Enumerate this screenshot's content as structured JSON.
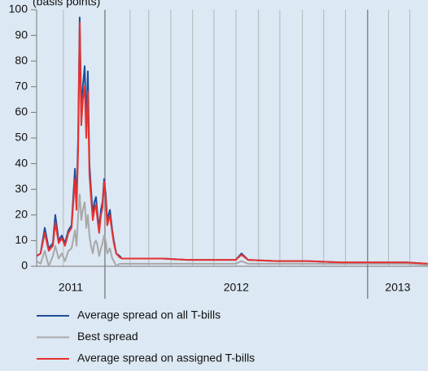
{
  "chart_data": {
    "type": "line",
    "subtitle": "(basis points)",
    "x": [
      2011.74,
      2011.755,
      2011.771,
      2011.786,
      2011.802,
      2011.811,
      2011.824,
      2011.836,
      2011.848,
      2011.861,
      2011.873,
      2011.886,
      2011.892,
      2011.898,
      2011.904,
      2011.91,
      2011.916,
      2011.923,
      2011.929,
      2011.935,
      2011.941,
      2011.947,
      2011.954,
      2011.96,
      2011.966,
      2011.972,
      2011.978,
      2011.985,
      2011.991,
      2011.997,
      2012.003,
      2012.009,
      2012.019,
      2012.028,
      2012.034,
      2012.043,
      2012.056,
      2012.065,
      2012.127,
      2012.22,
      2012.313,
      2012.406,
      2012.498,
      2012.52,
      2012.545,
      2012.653,
      2012.777,
      2012.901,
      2013.025,
      2013.149,
      2013.229
    ],
    "series": [
      {
        "name": "Average spread on all T-bills",
        "color": "#1f4e9a",
        "values": [
          4,
          5,
          15,
          7,
          9,
          20,
          10,
          12,
          9,
          14,
          16,
          38,
          25,
          50,
          97,
          60,
          70,
          78,
          55,
          76,
          40,
          30,
          20,
          25,
          27,
          20,
          15,
          22,
          25,
          34,
          28,
          18,
          22,
          14,
          10,
          5,
          4,
          3,
          3,
          3,
          2.5,
          2.5,
          2.5,
          5,
          2.5,
          2,
          2,
          1.5,
          1.5,
          1.5,
          1
        ]
      },
      {
        "name": "Best spread",
        "color": "#a8a8a8",
        "values": [
          2,
          1,
          6,
          0,
          4,
          8,
          3,
          5,
          2,
          6,
          7,
          14,
          8,
          20,
          28,
          18,
          22,
          25,
          15,
          20,
          12,
          8,
          5,
          9,
          10,
          8,
          4,
          7,
          9,
          12,
          10,
          5,
          7,
          3,
          2,
          0,
          1,
          1,
          1,
          1,
          1,
          1,
          1,
          2,
          1,
          1,
          1,
          1,
          1,
          1,
          0.5
        ]
      },
      {
        "name": "Average spread on assigned T-bills",
        "color": "#e8312f",
        "values": [
          4,
          5,
          13,
          6,
          8,
          17,
          9,
          11,
          8,
          13,
          15,
          34,
          22,
          45,
          95,
          55,
          65,
          70,
          50,
          68,
          36,
          27,
          18,
          22,
          24,
          18,
          13,
          20,
          23,
          33,
          26,
          16,
          20,
          13,
          9,
          5,
          3.5,
          3,
          3,
          3,
          2.5,
          2.5,
          2.5,
          4.5,
          2.5,
          2,
          2,
          1.5,
          1.5,
          1.5,
          1
        ]
      }
    ],
    "xlim": [
      2011.74,
      2013.23
    ],
    "year_boundaries": [
      2012,
      2013
    ],
    "x_periods": [
      "2011",
      "2012",
      "2013"
    ],
    "xgrid": [
      2011.842,
      2012.096,
      2012.167,
      2012.251,
      2012.334,
      2012.415,
      2012.499,
      2012.585,
      2012.666,
      2012.752,
      2012.833,
      2012.916,
      2013.08,
      2013.161
    ],
    "ylim": [
      0,
      100
    ],
    "yticks": [
      0,
      10,
      20,
      30,
      40,
      50,
      60,
      70,
      80,
      90,
      100
    ],
    "grid": true
  }
}
